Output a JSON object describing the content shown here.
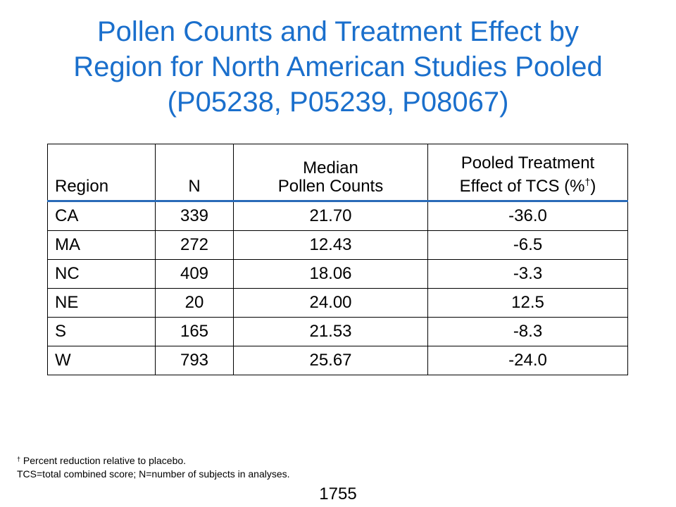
{
  "title": {
    "line1": "Pollen Counts and Treatment Effect by",
    "line2": "Region for North American Studies Pooled",
    "line3": "(P05238, P05239, P08067)"
  },
  "table": {
    "headers": {
      "region": "Region",
      "n": "N",
      "median_line1": "Median",
      "median_line2": "Pollen Counts",
      "effect_line1": "Pooled Treatment",
      "effect_line2_pre": "Effect of TCS (%",
      "effect_line2_sup": "†",
      "effect_line2_post": ")"
    },
    "rows": [
      {
        "region": "CA",
        "n": "339",
        "median": "21.70",
        "effect": "-36.0"
      },
      {
        "region": "MA",
        "n": "272",
        "median": "12.43",
        "effect": "-6.5"
      },
      {
        "region": "NC",
        "n": "409",
        "median": "18.06",
        "effect": "-3.3"
      },
      {
        "region": "NE",
        "n": "20",
        "median": "24.00",
        "effect": "12.5"
      },
      {
        "region": "S",
        "n": "165",
        "median": "21.53",
        "effect": "-8.3"
      },
      {
        "region": "W",
        "n": "793",
        "median": "25.67",
        "effect": "-24.0"
      }
    ]
  },
  "footnote": {
    "dagger": "†",
    "line1": " Percent reduction relative to placebo.",
    "line2": "TCS=total combined score; N=number of subjects in analyses."
  },
  "page_number": "1755",
  "colors": {
    "title": "#1a6fcc",
    "header_rule": "#2a6bb8"
  }
}
